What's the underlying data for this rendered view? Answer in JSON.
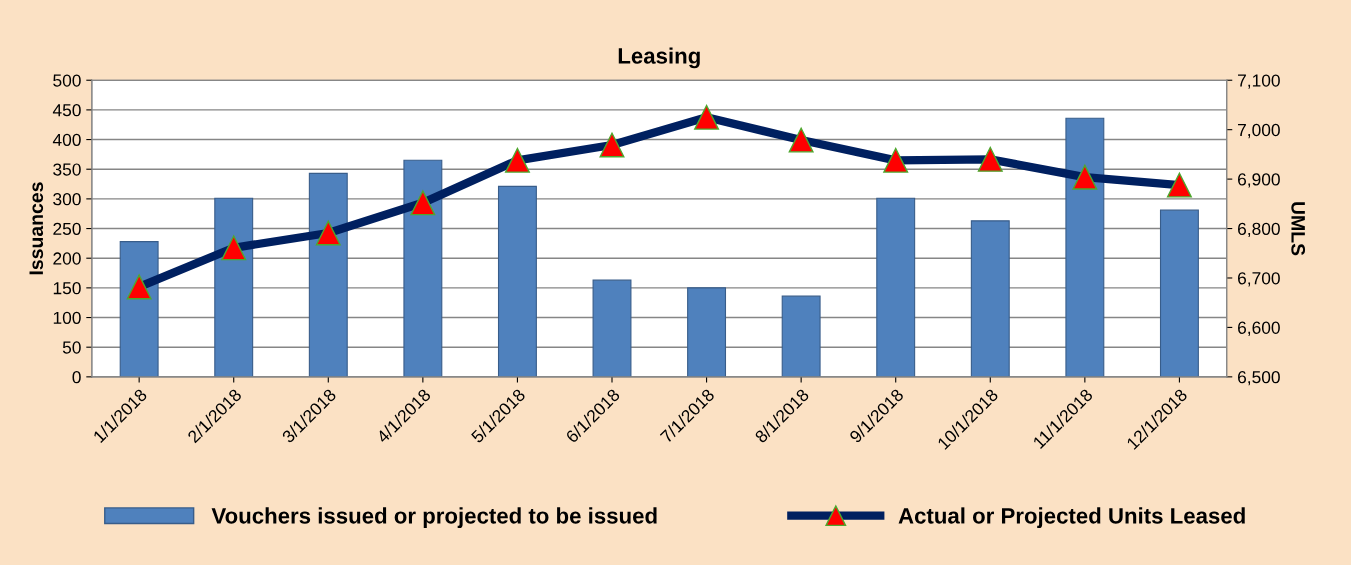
{
  "chart_data": {
    "type": "bar",
    "title": "Leasing",
    "ylabel": "Issuances",
    "y2label": "UMLS",
    "categories": [
      "1/1/2018",
      "2/1/2018",
      "3/1/2018",
      "4/1/2018",
      "5/1/2018",
      "6/1/2018",
      "7/1/2018",
      "8/1/2018",
      "9/1/2018",
      "10/1/2018",
      "11/1/2018",
      "12/1/2018"
    ],
    "series": [
      {
        "name": "Vouchers issued or projected to be issued",
        "color": "#4f81bd",
        "values": [
          228,
          301,
          343,
          365,
          321,
          163,
          150,
          136,
          301,
          263,
          436,
          281
        ]
      },
      {
        "name": "Actual or Projected Units Leased",
        "type": "line",
        "axis": "y2",
        "color": "#002060",
        "marker": "triangle",
        "values": [
          6682,
          6761,
          6791,
          6852,
          6938,
          6969,
          7025,
          6979,
          6938,
          6940,
          6904,
          6888
        ]
      }
    ],
    "ylim": [
      0,
      500
    ],
    "yticks": [
      0,
      50,
      100,
      150,
      200,
      250,
      300,
      350,
      400,
      450,
      500
    ],
    "y2lim": [
      6500,
      7100
    ],
    "y2ticks": [
      {
        "value": 6500,
        "label": "6,500"
      },
      {
        "value": 6600,
        "label": "6,600"
      },
      {
        "value": 6700,
        "label": "6,700"
      },
      {
        "value": 6800,
        "label": "6,800"
      },
      {
        "value": 6900,
        "label": "6,900"
      },
      {
        "value": 7000,
        "label": "7,000"
      },
      {
        "value": 7100,
        "label": "7,100"
      }
    ],
    "grid": "y",
    "legend": "bottom"
  }
}
